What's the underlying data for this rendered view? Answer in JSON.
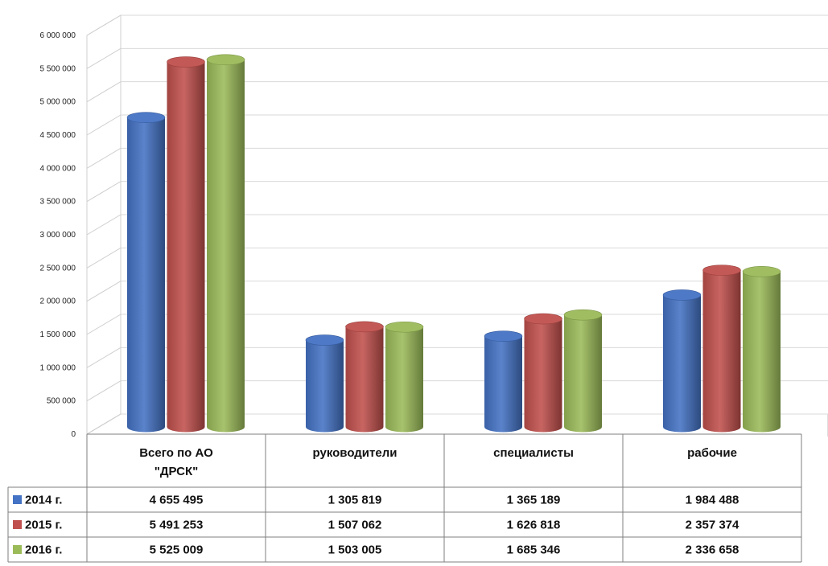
{
  "chart_data": {
    "type": "bar",
    "categories": [
      "Всего по АО \"ДРСК\"",
      "руководители",
      "специалисты",
      "рабочие"
    ],
    "category_lines": [
      [
        "Всего по АО",
        "\"ДРСК\""
      ],
      [
        "руководители"
      ],
      [
        "специалисты"
      ],
      [
        "рабочие"
      ]
    ],
    "series": [
      {
        "name": "2014 г.",
        "values": [
          4655495,
          1305819,
          1365189,
          1984488
        ],
        "labels": [
          "4 655 495",
          "1 305 819",
          "1 365 189",
          "1 984 488"
        ],
        "color": "#4472c4"
      },
      {
        "name": "2015 г.",
        "values": [
          5491253,
          1507062,
          1626818,
          2357374
        ],
        "labels": [
          "5 491 253",
          "1 507 062",
          "1 626 818",
          "2 357 374"
        ],
        "color": "#c0504d"
      },
      {
        "name": "2016 г.",
        "values": [
          5525009,
          1503005,
          1685346,
          2336658
        ],
        "labels": [
          "5 525 009",
          "1 503 005",
          "1 685 346",
          "2 336 658"
        ],
        "color": "#9bbb59"
      }
    ],
    "y_ticks": [
      0,
      500000,
      1000000,
      1500000,
      2000000,
      2500000,
      3000000,
      3500000,
      4000000,
      4500000,
      5000000,
      5500000,
      6000000
    ],
    "y_tick_labels": [
      "0",
      "500 000",
      "1 000 000",
      "1 500 000",
      "2 000 000",
      "2 500 000",
      "3 000 000",
      "3 500 000",
      "4 000 000",
      "4 500 000",
      "5 000 000",
      "5 500 000",
      "6 000 000"
    ],
    "ylim": [
      0,
      6000000
    ],
    "title": "",
    "xlabel": "",
    "ylabel": "",
    "grid": true,
    "legend": "data-table",
    "style": "3d-cylinder"
  }
}
